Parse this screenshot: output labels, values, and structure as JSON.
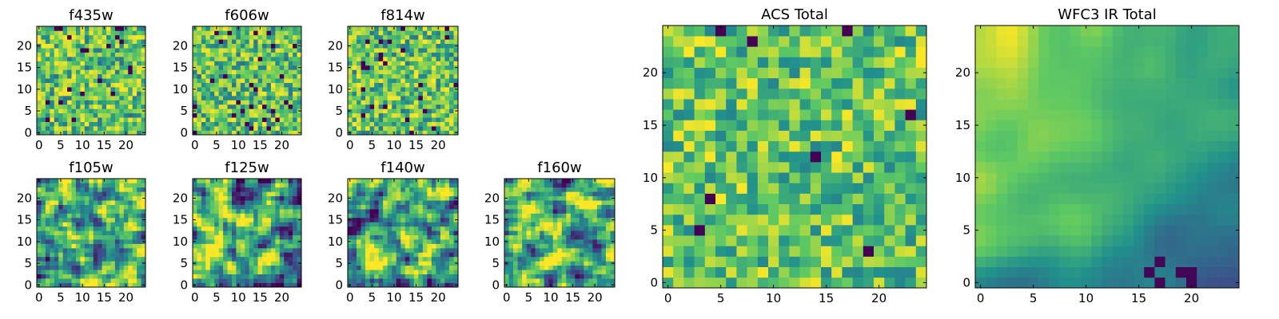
{
  "figure": {
    "colormap": "viridis",
    "colors": [
      "#440154",
      "#3b528b",
      "#21918c",
      "#5ec962",
      "#fde725"
    ]
  },
  "chart_data": [
    {
      "type": "heatmap",
      "title": "f435w",
      "grid_size": 25,
      "xlim": [
        0,
        24
      ],
      "ylim": [
        0,
        24
      ],
      "x_ticks": [
        0,
        5,
        10,
        15,
        20
      ],
      "y_ticks": [
        0,
        5,
        10,
        15,
        20
      ],
      "seed": 11,
      "style": "noise"
    },
    {
      "type": "heatmap",
      "title": "f606w",
      "grid_size": 25,
      "xlim": [
        0,
        24
      ],
      "ylim": [
        0,
        24
      ],
      "x_ticks": [
        0,
        5,
        10,
        15,
        20
      ],
      "y_ticks": [
        0,
        5,
        10,
        15,
        20
      ],
      "seed": 23,
      "style": "noise"
    },
    {
      "type": "heatmap",
      "title": "f814w",
      "grid_size": 25,
      "xlim": [
        0,
        24
      ],
      "ylim": [
        0,
        24
      ],
      "x_ticks": [
        0,
        5,
        10,
        15,
        20
      ],
      "y_ticks": [
        0,
        5,
        10,
        15,
        20
      ],
      "seed": 37,
      "style": "noise"
    },
    {
      "type": "heatmap",
      "title": "f105w",
      "grid_size": 25,
      "xlim": [
        0,
        24
      ],
      "ylim": [
        0,
        24
      ],
      "x_ticks": [
        0,
        5,
        10,
        15,
        20
      ],
      "y_ticks": [
        0,
        5,
        10,
        15,
        20
      ],
      "seed": 41,
      "style": "smooth"
    },
    {
      "type": "heatmap",
      "title": "f125w",
      "grid_size": 25,
      "xlim": [
        0,
        24
      ],
      "ylim": [
        0,
        24
      ],
      "x_ticks": [
        0,
        5,
        10,
        15,
        20
      ],
      "y_ticks": [
        0,
        5,
        10,
        15,
        20
      ],
      "seed": 53,
      "style": "smooth"
    },
    {
      "type": "heatmap",
      "title": "f140w",
      "grid_size": 25,
      "xlim": [
        0,
        24
      ],
      "ylim": [
        0,
        24
      ],
      "x_ticks": [
        0,
        5,
        10,
        15,
        20
      ],
      "y_ticks": [
        0,
        5,
        10,
        15,
        20
      ],
      "seed": 67,
      "style": "smooth"
    },
    {
      "type": "heatmap",
      "title": "f160w",
      "grid_size": 25,
      "xlim": [
        0,
        24
      ],
      "ylim": [
        0,
        24
      ],
      "x_ticks": [
        0,
        5,
        10,
        15,
        20
      ],
      "y_ticks": [
        0,
        5,
        10,
        15,
        20
      ],
      "seed": 71,
      "style": "smooth"
    },
    {
      "type": "heatmap",
      "title": "ACS Total",
      "grid_size": 25,
      "xlim": [
        0,
        24
      ],
      "ylim": [
        0,
        24
      ],
      "x_ticks": [
        0,
        5,
        10,
        15,
        20
      ],
      "y_ticks": [
        0,
        5,
        10,
        15,
        20
      ],
      "seed": 83,
      "style": "noise-bright"
    },
    {
      "type": "heatmap",
      "title": "WFC3 IR Total",
      "grid_size": 25,
      "xlim": [
        0,
        24
      ],
      "ylim": [
        0,
        24
      ],
      "x_ticks": [
        0,
        5,
        10,
        15,
        20
      ],
      "y_ticks": [
        0,
        5,
        10,
        15,
        20
      ],
      "seed": 97,
      "style": "gradient"
    }
  ]
}
